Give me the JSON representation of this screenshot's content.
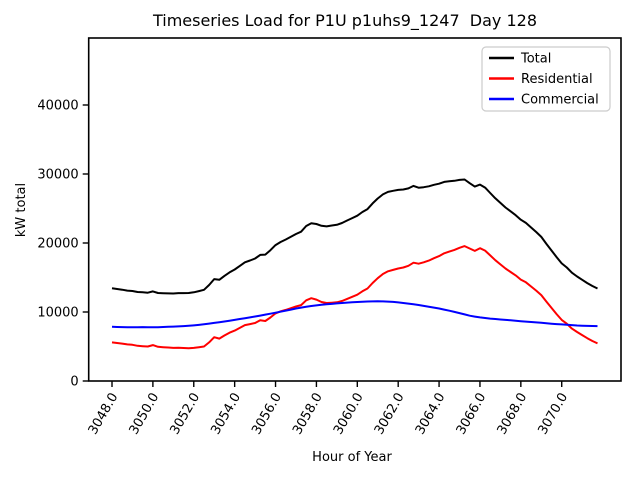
{
  "figure": {
    "title": "Timeseries Load for P1U p1uhs9_1247  Day 128",
    "xlabel": "Hour of Year",
    "ylabel": "kW total"
  },
  "legend": {
    "position": "upper right",
    "items": [
      {
        "label": "Total",
        "color": "#000000"
      },
      {
        "label": "Residential",
        "color": "#ff0000"
      },
      {
        "label": "Commercial",
        "color": "#0000ff"
      }
    ]
  },
  "chart_data": {
    "type": "line",
    "title": "Timeseries Load for P1U p1uhs9_1247  Day 128",
    "xlabel": "Hour of Year",
    "ylabel": "kW total",
    "grid": false,
    "legend_position": "upper right",
    "xlim": [
      3046.86,
      3072.9
    ],
    "ylim": [
      0,
      49710
    ],
    "xticks": [
      3048,
      3050,
      3052,
      3054,
      3056,
      3058,
      3060,
      3062,
      3064,
      3066,
      3068,
      3070
    ],
    "xtick_labels": [
      "3048.0",
      "3050.0",
      "3052.0",
      "3054.0",
      "3056.0",
      "3058.0",
      "3060.0",
      "3062.0",
      "3064.0",
      "3066.0",
      "3068.0",
      "3070.0"
    ],
    "yticks": [
      0,
      10000,
      20000,
      30000,
      40000
    ],
    "ytick_labels": [
      "0",
      "10000",
      "20000",
      "30000",
      "40000"
    ],
    "x_start": 3048.0,
    "x_step": 0.25,
    "series": [
      {
        "name": "Total",
        "color": "#000000",
        "values": [
          13450,
          13330,
          13230,
          13100,
          13040,
          12900,
          12860,
          12800,
          12990,
          12750,
          12720,
          12700,
          12680,
          12740,
          12740,
          12750,
          12860,
          13030,
          13220,
          13920,
          14770,
          14670,
          15230,
          15740,
          16160,
          16680,
          17200,
          17470,
          17750,
          18280,
          18320,
          18960,
          19700,
          20150,
          20500,
          20900,
          21300,
          21640,
          22460,
          22870,
          22760,
          22490,
          22410,
          22530,
          22640,
          22900,
          23260,
          23610,
          23950,
          24490,
          24920,
          25740,
          26450,
          27040,
          27410,
          27560,
          27690,
          27760,
          27920,
          28270,
          28010,
          28090,
          28220,
          28440,
          28600,
          28850,
          28940,
          29020,
          29140,
          29200,
          28670,
          28180,
          28470,
          28030,
          27250,
          26480,
          25810,
          25150,
          24590,
          24030,
          23370,
          22910,
          22250,
          21590,
          20880,
          19870,
          18910,
          17950,
          17050,
          16450,
          15700,
          15150,
          14660,
          14190,
          13770,
          13400
        ]
      },
      {
        "name": "Residential",
        "color": "#ff0000",
        "values": [
          5600,
          5500,
          5420,
          5300,
          5250,
          5100,
          5050,
          5000,
          5200,
          4950,
          4900,
          4850,
          4800,
          4820,
          4780,
          4750,
          4800,
          4900,
          5000,
          5600,
          6350,
          6150,
          6600,
          7000,
          7300,
          7700,
          8100,
          8250,
          8400,
          8800,
          8700,
          9200,
          9800,
          10100,
          10300,
          10550,
          10800,
          11000,
          11700,
          12000,
          11800,
          11450,
          11300,
          11350,
          11400,
          11600,
          11900,
          12200,
          12500,
          13000,
          13400,
          14200,
          14900,
          15500,
          15900,
          16100,
          16300,
          16450,
          16700,
          17150,
          17000,
          17200,
          17450,
          17800,
          18100,
          18500,
          18750,
          19000,
          19300,
          19550,
          19200,
          18850,
          19250,
          18900,
          18200,
          17500,
          16900,
          16300,
          15800,
          15300,
          14700,
          14300,
          13700,
          13100,
          12450,
          11500,
          10600,
          9700,
          8850,
          8300,
          7600,
          7100,
          6650,
          6200,
          5800,
          5450
        ]
      },
      {
        "name": "Commercial",
        "color": "#0000ff",
        "values": [
          7850,
          7830,
          7810,
          7800,
          7790,
          7800,
          7810,
          7800,
          7790,
          7800,
          7820,
          7850,
          7880,
          7920,
          7960,
          8000,
          8060,
          8130,
          8220,
          8320,
          8420,
          8520,
          8630,
          8740,
          8860,
          8980,
          9100,
          9220,
          9350,
          9480,
          9620,
          9760,
          9900,
          10050,
          10200,
          10350,
          10500,
          10640,
          10760,
          10870,
          10960,
          11040,
          11110,
          11180,
          11240,
          11300,
          11360,
          11410,
          11450,
          11490,
          11520,
          11540,
          11550,
          11540,
          11510,
          11460,
          11390,
          11310,
          11220,
          11120,
          11010,
          10890,
          10770,
          10640,
          10500,
          10350,
          10190,
          10020,
          9840,
          9650,
          9470,
          9330,
          9220,
          9130,
          9050,
          8980,
          8910,
          8850,
          8790,
          8730,
          8670,
          8610,
          8550,
          8490,
          8430,
          8370,
          8310,
          8250,
          8200,
          8150,
          8100,
          8050,
          8010,
          7990,
          7970,
          7950
        ]
      }
    ]
  }
}
